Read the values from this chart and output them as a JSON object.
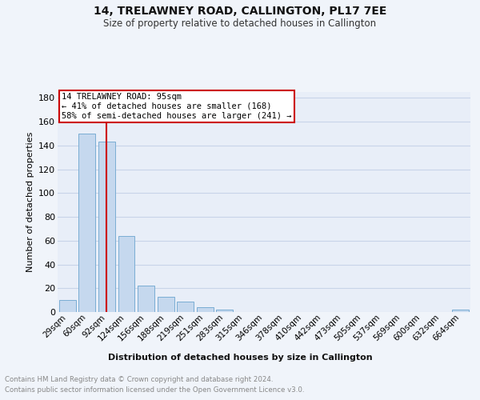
{
  "title": "14, TRELAWNEY ROAD, CALLINGTON, PL17 7EE",
  "subtitle": "Size of property relative to detached houses in Callington",
  "xlabel": "Distribution of detached houses by size in Callington",
  "ylabel": "Number of detached properties",
  "annotation_line1": "14 TRELAWNEY ROAD: 95sqm",
  "annotation_line2": "← 41% of detached houses are smaller (168)",
  "annotation_line3": "58% of semi-detached houses are larger (241) →",
  "categories": [
    "29sqm",
    "60sqm",
    "92sqm",
    "124sqm",
    "156sqm",
    "188sqm",
    "219sqm",
    "251sqm",
    "283sqm",
    "315sqm",
    "346sqm",
    "378sqm",
    "410sqm",
    "442sqm",
    "473sqm",
    "505sqm",
    "537sqm",
    "569sqm",
    "600sqm",
    "632sqm",
    "664sqm"
  ],
  "values": [
    10,
    150,
    143,
    64,
    22,
    13,
    9,
    4,
    2,
    0,
    0,
    0,
    0,
    0,
    0,
    0,
    0,
    0,
    0,
    0,
    2
  ],
  "bar_color": "#c5d8ee",
  "bar_edge_color": "#7aadd4",
  "vline_color": "#cc0000",
  "vline_x": 2,
  "annotation_box_edge": "#cc0000",
  "bg_color": "#f0f4fa",
  "plot_bg_color": "#e8eef8",
  "ylim": [
    0,
    185
  ],
  "yticks": [
    0,
    20,
    40,
    60,
    80,
    100,
    120,
    140,
    160,
    180
  ],
  "grid_color": "#c8d4e8",
  "footer_line1": "Contains HM Land Registry data © Crown copyright and database right 2024.",
  "footer_line2": "Contains public sector information licensed under the Open Government Licence v3.0."
}
